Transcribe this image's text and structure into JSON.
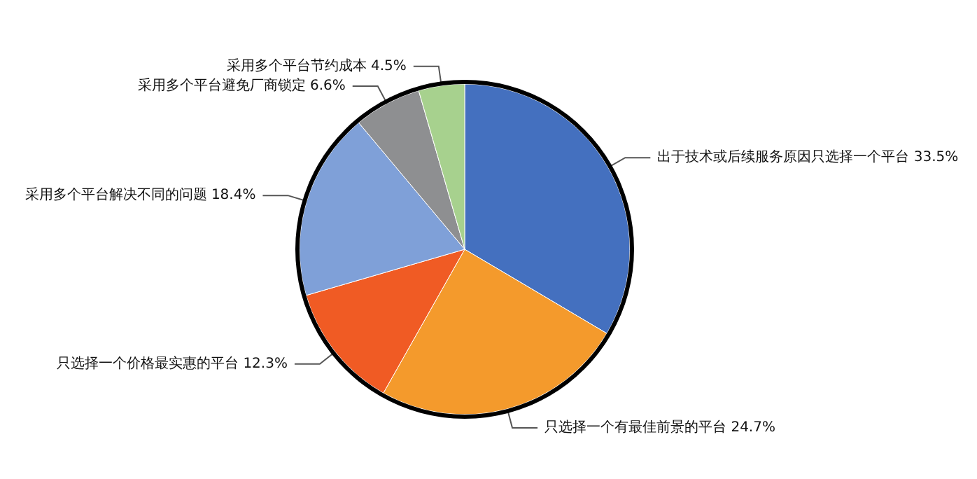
{
  "chart_data": {
    "type": "pie",
    "categories": [
      "出于技术或后续服务原因只选择一个平台",
      "只选择一个有最佳前景的平台",
      "只选择一个价格最实惠的平台",
      "采用多个平台解决不同的问题",
      "采用多个平台避免厂商锁定",
      "采用多个平台节约成本"
    ],
    "values": [
      33.5,
      24.7,
      12.3,
      18.4,
      6.6,
      4.5
    ],
    "colors": [
      "#4470bf",
      "#f49a2c",
      "#f05b24",
      "#7fa0d8",
      "#8e8f91",
      "#a7d18e"
    ],
    "value_labels": [
      "33.5%",
      "24.7%",
      "12.3%",
      "18.4%",
      "6.6%",
      "4.5%"
    ],
    "legend": false
  }
}
